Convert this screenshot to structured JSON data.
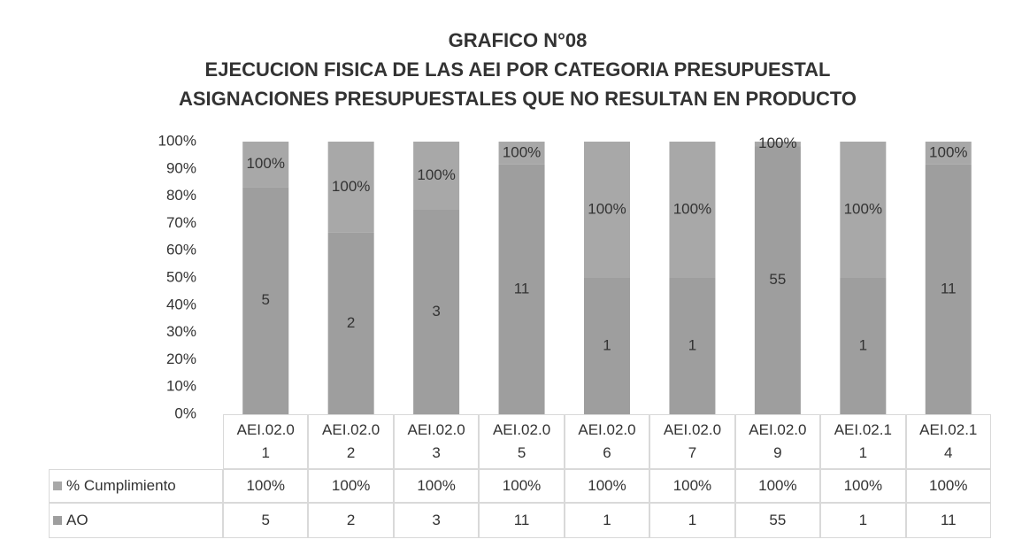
{
  "chart_data": {
    "type": "bar",
    "stacked": "percent",
    "title": "GRAFICO N°08",
    "subtitle": [
      "EJECUCION FISICA DE LAS AEI POR CATEGORIA PRESUPUESTAL",
      "ASIGNACIONES PRESUPUESTALES QUE NO RESULTAN EN PRODUCTO"
    ],
    "categories": [
      "AEI.02.01",
      "AEI.02.02",
      "AEI.02.03",
      "AEI.02.05",
      "AEI.02.06",
      "AEI.02.07",
      "AEI.02.09",
      "AEI.02.11",
      "AEI.02.14"
    ],
    "series": [
      {
        "name": "AO",
        "color": "#9e9e9e",
        "values": [
          5,
          2,
          3,
          11,
          1,
          1,
          55,
          1,
          11
        ]
      },
      {
        "name": "% Cumplimiento",
        "color": "#a8a8a8",
        "values": [
          1,
          1,
          1,
          1,
          1,
          1,
          1,
          1,
          1
        ],
        "value_labels": [
          "100%",
          "100%",
          "100%",
          "100%",
          "100%",
          "100%",
          "100%",
          "100%",
          "100%"
        ]
      }
    ],
    "ylim": [
      0,
      100
    ],
    "yticks": [
      {
        "value": 0,
        "label": "0%"
      },
      {
        "value": 10,
        "label": "10%"
      },
      {
        "value": 20,
        "label": "20%"
      },
      {
        "value": 30,
        "label": "30%"
      },
      {
        "value": 40,
        "label": "40%"
      },
      {
        "value": 50,
        "label": "50%"
      },
      {
        "value": 60,
        "label": "60%"
      },
      {
        "value": 70,
        "label": "70%"
      },
      {
        "value": 80,
        "label": "80%"
      },
      {
        "value": 90,
        "label": "90%"
      },
      {
        "value": 100,
        "label": "100%"
      }
    ],
    "data_table": true
  }
}
